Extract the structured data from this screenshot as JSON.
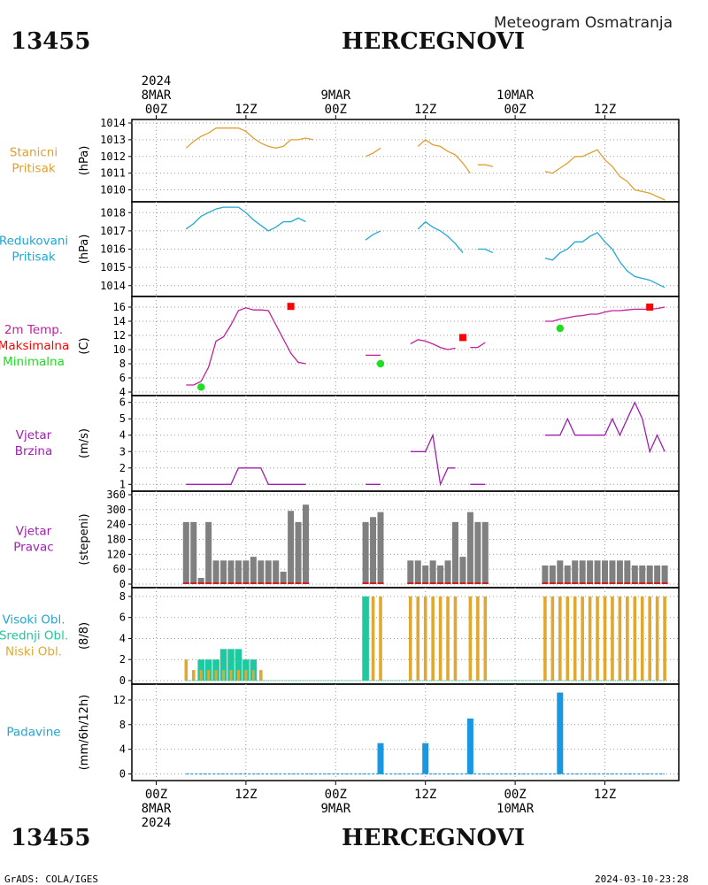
{
  "header": {
    "station_id": "13455",
    "station_name": "HERCEGNOVI",
    "subtitle": "Meteogram Osmatranja"
  },
  "footer": {
    "station_id": "13455",
    "station_name": "HERCEGNOVI",
    "left_note": "GrADS: COLA/IGES",
    "timestamp": "2024-03-10-23:28"
  },
  "time_axis": {
    "ticks": [
      {
        "hour": 0,
        "top": [
          "2024",
          "8MAR",
          "00Z"
        ],
        "bottom": [
          "00Z",
          "8MAR",
          "2024"
        ]
      },
      {
        "hour": 12,
        "top": [
          "12Z"
        ],
        "bottom": [
          "12Z"
        ]
      },
      {
        "hour": 24,
        "top": [
          "9MAR",
          "00Z"
        ],
        "bottom": [
          "00Z",
          "9MAR"
        ]
      },
      {
        "hour": 36,
        "top": [
          "12Z"
        ],
        "bottom": [
          "12Z"
        ]
      },
      {
        "hour": 48,
        "top": [
          "10MAR",
          "00Z"
        ],
        "bottom": [
          "00Z",
          "10MAR"
        ]
      },
      {
        "hour": 60,
        "top": [
          "12Z"
        ],
        "bottom": [
          "12Z"
        ]
      }
    ]
  },
  "colors": {
    "station_pressure": "#e0a030",
    "reduced_pressure": "#20a8d0",
    "temperature": "#c0209c",
    "tmax": "#ff0000",
    "tmin": "#20dd20",
    "wind": "#a020b0",
    "wind_dir_bar": "#808080",
    "wind_dir_base": "#d02020",
    "cloud_high": "#a8c8f0",
    "cloud_mid": "#20c8a0",
    "cloud_low": "#e0a830",
    "precip": "#1898e0"
  },
  "chart_data": [
    {
      "type": "line",
      "panel": "station_pressure",
      "label_lines": [
        "Stanicni",
        "Pritisak"
      ],
      "unit": "(hPa)",
      "ylim": [
        1009.5,
        1014
      ],
      "yticks": [
        1010,
        1011,
        1012,
        1013,
        1014
      ],
      "x_unit": "hours since 8MAR 00Z",
      "segments": [
        [
          [
            4,
            1012.5
          ],
          [
            5,
            1012.9
          ],
          [
            6,
            1013.2
          ],
          [
            7,
            1013.4
          ],
          [
            8,
            1013.7
          ],
          [
            9,
            1013.7
          ],
          [
            10,
            1013.7
          ],
          [
            11,
            1013.7
          ],
          [
            12,
            1013.5
          ],
          [
            13,
            1013.1
          ],
          [
            14,
            1012.8
          ],
          [
            15,
            1012.6
          ],
          [
            16,
            1012.5
          ],
          [
            17,
            1012.6
          ],
          [
            18,
            1013
          ],
          [
            19,
            1013
          ],
          [
            20,
            1013.1
          ],
          [
            21,
            1013
          ]
        ],
        [
          [
            28,
            1012
          ],
          [
            29,
            1012.2
          ],
          [
            30,
            1012.5
          ]
        ],
        [
          [
            35,
            1012.6
          ],
          [
            36,
            1013
          ],
          [
            37,
            1012.7
          ],
          [
            38,
            1012.6
          ],
          [
            39,
            1012.3
          ],
          [
            40,
            1012.1
          ],
          [
            41,
            1011.6
          ],
          [
            42,
            1011
          ]
        ],
        [
          [
            43,
            1011.5
          ],
          [
            44,
            1011.5
          ],
          [
            45,
            1011.4
          ]
        ],
        [
          [
            52,
            1011.1
          ],
          [
            53,
            1011
          ],
          [
            54,
            1011.3
          ],
          [
            55,
            1011.6
          ],
          [
            56,
            1012
          ],
          [
            57,
            1012
          ],
          [
            58,
            1012.2
          ],
          [
            59,
            1012.4
          ],
          [
            60,
            1011.8
          ],
          [
            61,
            1011.4
          ],
          [
            62,
            1010.8
          ],
          [
            63,
            1010.5
          ],
          [
            64,
            1010
          ],
          [
            65,
            1009.9
          ],
          [
            66,
            1009.8
          ],
          [
            67,
            1009.6
          ],
          [
            68,
            1009.4
          ]
        ]
      ]
    },
    {
      "type": "line",
      "panel": "reduced_pressure",
      "label_lines": [
        "Redukovani",
        "Pritisak"
      ],
      "unit": "(hPa)",
      "ylim": [
        1013.6,
        1018.4
      ],
      "yticks": [
        1014,
        1015,
        1016,
        1017,
        1018
      ],
      "x_unit": "hours since 8MAR 00Z",
      "segments": [
        [
          [
            4,
            1017.1
          ],
          [
            5,
            1017.4
          ],
          [
            6,
            1017.8
          ],
          [
            7,
            1018
          ],
          [
            8,
            1018.2
          ],
          [
            9,
            1018.3
          ],
          [
            10,
            1018.3
          ],
          [
            11,
            1018.3
          ],
          [
            12,
            1018
          ],
          [
            13,
            1017.6
          ],
          [
            14,
            1017.3
          ],
          [
            15,
            1017
          ],
          [
            16,
            1017.2
          ],
          [
            17,
            1017.5
          ],
          [
            18,
            1017.5
          ],
          [
            19,
            1017.7
          ],
          [
            20,
            1017.5
          ]
        ],
        [
          [
            28,
            1016.5
          ],
          [
            29,
            1016.8
          ],
          [
            30,
            1017
          ]
        ],
        [
          [
            35,
            1017.1
          ],
          [
            36,
            1017.5
          ],
          [
            37,
            1017.2
          ],
          [
            38,
            1017
          ],
          [
            39,
            1016.7
          ],
          [
            40,
            1016.3
          ],
          [
            41,
            1015.8
          ]
        ],
        [
          [
            43,
            1016
          ],
          [
            44,
            1016
          ],
          [
            45,
            1015.8
          ]
        ],
        [
          [
            52,
            1015.5
          ],
          [
            53,
            1015.4
          ],
          [
            54,
            1015.8
          ],
          [
            55,
            1016
          ],
          [
            56,
            1016.4
          ],
          [
            57,
            1016.4
          ],
          [
            58,
            1016.7
          ],
          [
            59,
            1016.9
          ],
          [
            60,
            1016.4
          ],
          [
            61,
            1016
          ],
          [
            62,
            1015.3
          ],
          [
            63,
            1014.8
          ],
          [
            64,
            1014.5
          ],
          [
            65,
            1014.4
          ],
          [
            66,
            1014.3
          ],
          [
            67,
            1014.1
          ],
          [
            68,
            1013.9
          ]
        ]
      ]
    },
    {
      "type": "line",
      "panel": "temperature",
      "label_lines": [
        "2m Temp.",
        "Maksimalna",
        "Minimalna"
      ],
      "unit": "(C)",
      "ylim": [
        4,
        17
      ],
      "yticks": [
        4,
        6,
        8,
        10,
        12,
        14,
        16
      ],
      "x_unit": "hours since 8MAR 00Z",
      "segments": [
        [
          [
            4,
            5
          ],
          [
            5,
            5
          ],
          [
            6,
            5.5
          ],
          [
            7,
            7.5
          ],
          [
            8,
            11.2
          ],
          [
            9,
            11.8
          ],
          [
            10,
            13.5
          ],
          [
            11,
            15.5
          ],
          [
            12,
            15.9
          ],
          [
            13,
            15.6
          ],
          [
            14,
            15.6
          ],
          [
            15,
            15.5
          ],
          [
            16,
            13.5
          ],
          [
            17,
            11.5
          ],
          [
            18,
            9.5
          ],
          [
            19,
            8.2
          ],
          [
            20,
            8
          ]
        ],
        [
          [
            28,
            9.2
          ],
          [
            29,
            9.2
          ],
          [
            30,
            9.2
          ]
        ],
        [
          [
            34,
            10.8
          ],
          [
            35,
            11.4
          ],
          [
            36,
            11.2
          ],
          [
            37,
            10.8
          ],
          [
            38,
            10.3
          ],
          [
            39,
            10
          ],
          [
            40,
            10.2
          ]
        ],
        [
          [
            42,
            10.3
          ],
          [
            43,
            10.3
          ],
          [
            44,
            11
          ]
        ],
        [
          [
            52,
            14
          ],
          [
            53,
            14
          ],
          [
            54,
            14.3
          ],
          [
            55,
            14.5
          ],
          [
            56,
            14.7
          ],
          [
            57,
            14.8
          ],
          [
            58,
            15
          ],
          [
            59,
            15
          ],
          [
            60,
            15.3
          ],
          [
            61,
            15.5
          ],
          [
            62,
            15.5
          ],
          [
            63,
            15.6
          ],
          [
            64,
            15.7
          ],
          [
            65,
            15.7
          ],
          [
            66,
            15.7
          ],
          [
            67,
            15.8
          ],
          [
            68,
            16
          ]
        ]
      ],
      "max_points": [
        [
          18,
          16.1
        ],
        [
          41,
          11.7
        ],
        [
          66,
          16
        ]
      ],
      "min_points": [
        [
          6,
          4.7
        ],
        [
          30,
          8
        ],
        [
          54,
          13
        ]
      ]
    },
    {
      "type": "line",
      "panel": "wind_speed",
      "label_lines": [
        "Vjetar",
        "Brzina"
      ],
      "unit": "(m/s)",
      "ylim": [
        0.8,
        6.2
      ],
      "yticks": [
        1,
        2,
        3,
        4,
        5,
        6
      ],
      "x_unit": "hours since 8MAR 00Z",
      "segments": [
        [
          [
            4,
            1
          ],
          [
            5,
            1
          ],
          [
            6,
            1
          ],
          [
            7,
            1
          ],
          [
            8,
            1
          ],
          [
            9,
            1
          ],
          [
            10,
            1
          ],
          [
            11,
            2
          ],
          [
            12,
            2
          ],
          [
            13,
            2
          ],
          [
            14,
            2
          ],
          [
            15,
            1
          ],
          [
            16,
            1
          ],
          [
            17,
            1
          ],
          [
            18,
            1
          ],
          [
            19,
            1
          ],
          [
            20,
            1
          ]
        ],
        [
          [
            28,
            1
          ],
          [
            29,
            1
          ],
          [
            30,
            1
          ]
        ],
        [
          [
            34,
            3
          ],
          [
            35,
            3
          ],
          [
            36,
            3
          ],
          [
            37,
            4
          ],
          [
            38,
            1
          ],
          [
            39,
            2
          ],
          [
            40,
            2
          ]
        ],
        [
          [
            42,
            1
          ],
          [
            43,
            1
          ],
          [
            44,
            1
          ]
        ],
        [
          [
            52,
            4
          ],
          [
            53,
            4
          ],
          [
            54,
            4
          ],
          [
            55,
            5
          ],
          [
            56,
            4
          ],
          [
            57,
            4
          ],
          [
            58,
            4
          ],
          [
            59,
            4
          ],
          [
            60,
            4
          ],
          [
            61,
            5
          ],
          [
            62,
            4
          ],
          [
            63,
            5
          ],
          [
            64,
            6
          ],
          [
            65,
            5
          ],
          [
            66,
            3
          ],
          [
            67,
            4
          ],
          [
            68,
            3
          ]
        ]
      ]
    },
    {
      "type": "bar",
      "panel": "wind_direction",
      "label_lines": [
        "Vjetar",
        "Pravac"
      ],
      "unit": "(stepeni)",
      "ylim": [
        0,
        360
      ],
      "yticks": [
        0,
        60,
        120,
        180,
        240,
        300,
        360
      ],
      "x_unit": "hours since 8MAR 00Z",
      "x": [
        4,
        5,
        6,
        7,
        8,
        9,
        10,
        11,
        12,
        13,
        14,
        15,
        16,
        17,
        18,
        19,
        20,
        28,
        29,
        30,
        34,
        35,
        36,
        37,
        38,
        39,
        40,
        41,
        42,
        43,
        44,
        52,
        53,
        54,
        55,
        56,
        57,
        58,
        59,
        60,
        61,
        62,
        63,
        64,
        65,
        66,
        67,
        68
      ],
      "values": [
        250,
        250,
        25,
        250,
        95,
        95,
        95,
        95,
        95,
        110,
        95,
        95,
        95,
        50,
        295,
        250,
        320,
        250,
        270,
        290,
        95,
        95,
        75,
        95,
        75,
        95,
        250,
        110,
        290,
        250,
        250,
        75,
        75,
        95,
        75,
        95,
        95,
        95,
        95,
        95,
        95,
        95,
        95,
        75,
        75,
        75,
        75,
        75
      ]
    },
    {
      "type": "bar",
      "panel": "cloud_cover",
      "label_lines": [
        "Visoki Obl.",
        "Srednji Obl.",
        "Niski Obl."
      ],
      "unit": "(8/8)",
      "ylim": [
        0,
        8.5
      ],
      "yticks": [
        0,
        2,
        4,
        6,
        8
      ],
      "x_unit": "hours since 8MAR 00Z",
      "x": [
        4,
        5,
        6,
        7,
        8,
        9,
        10,
        11,
        12,
        13,
        14,
        28,
        29,
        30,
        34,
        35,
        36,
        37,
        38,
        39,
        40,
        42,
        43,
        44,
        52,
        53,
        54,
        55,
        56,
        57,
        58,
        59,
        60,
        61,
        62,
        63,
        64,
        65,
        66,
        67,
        68
      ],
      "series": [
        {
          "name": "Visoki Obl.",
          "values": [
            0,
            0,
            0,
            0,
            0,
            0,
            0,
            0,
            0,
            0,
            0,
            0,
            0,
            0,
            0,
            0,
            0,
            0,
            0,
            0,
            0,
            0,
            0,
            0,
            0,
            0,
            0,
            0,
            0,
            0,
            0,
            0,
            0,
            0,
            0,
            0,
            0,
            0,
            0,
            0,
            0
          ]
        },
        {
          "name": "Srednji Obl.",
          "values": [
            0,
            0,
            2,
            2,
            2,
            3,
            3,
            3,
            2,
            2,
            0,
            8,
            0,
            0,
            0,
            0,
            0,
            0,
            0,
            0,
            0,
            0,
            0,
            0,
            0,
            0,
            0,
            0,
            0,
            0,
            0,
            0,
            0,
            0,
            0,
            0,
            0,
            0,
            0,
            0,
            0
          ]
        },
        {
          "name": "Niski Obl.",
          "values": [
            2,
            1,
            1,
            1,
            1,
            1,
            1,
            1,
            1,
            1,
            1,
            0,
            8,
            8,
            8,
            8,
            8,
            8,
            8,
            8,
            8,
            8,
            8,
            8,
            8,
            8,
            8,
            8,
            8,
            8,
            8,
            8,
            8,
            8,
            8,
            8,
            8,
            8,
            8,
            8,
            8
          ]
        }
      ]
    },
    {
      "type": "bar",
      "panel": "precipitation",
      "label_lines": [
        "Padavine"
      ],
      "unit": "(mm/6h/12h)",
      "ylim": [
        -0.5,
        14
      ],
      "yticks": [
        0,
        4,
        8,
        12
      ],
      "x_unit": "hours since 8MAR 00Z",
      "x": [
        30,
        36,
        42,
        54
      ],
      "values": [
        5,
        5,
        9,
        13.2
      ]
    }
  ]
}
